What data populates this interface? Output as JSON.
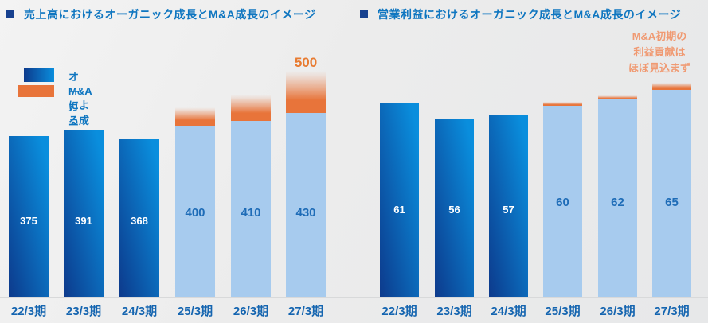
{
  "colors": {
    "title_blue": "#0f76c0",
    "bullet_navy": "#17418f",
    "axis_blue": "#1565b0",
    "value_blue": "#1e6cb7",
    "dark_bar_start": "#0d3a8c",
    "dark_bar_end": "#0a8edd",
    "light_bar": "#a7cbee",
    "orange": "#e8743a",
    "orange_label": "#e87b31",
    "annotation_orange": "#f09a72",
    "baseline_color": "#d8d9da",
    "background": "#ececec"
  },
  "titles": {
    "bullet": "",
    "left": "売上高におけるオーガニック成長とM&A成長のイメージ",
    "right": "営業利益におけるオーガニック成長とM&A成長のイメージ"
  },
  "legend": {
    "organic_label": "オーガニックによる成長",
    "mna_label": "M&Aによる成長"
  },
  "annotation": {
    "lines": [
      "M&A初期の",
      "利益貢献は",
      "ほぼ見込まず"
    ]
  },
  "peak_label": "500",
  "chart_data": [
    {
      "type": "bar",
      "title": "売上高におけるオーガニック成長とM&A成長のイメージ",
      "categories": [
        "22/3期",
        "23/3期",
        "24/3期",
        "25/3期",
        "26/3期",
        "27/3期"
      ],
      "series": [
        {
          "name": "オーガニックによる成長",
          "values": [
            375,
            391,
            368,
            400,
            410,
            430
          ]
        },
        {
          "name": "M&Aによる成長",
          "values": [
            0,
            0,
            0,
            null,
            null,
            70
          ],
          "note": "M&A portions for 25/3期 and 26/3期 are drawn but not labeled; 27/3期 total is labeled 500 (500-430=70)"
        }
      ],
      "total_label_last_bar": 500,
      "xlabel": "",
      "ylabel": "",
      "grid": false,
      "legend_position": "upper-left",
      "style_note": "first 3 bars dark blue gradient (actual), last 3 light blue (forecast) with orange fading M&A caps"
    },
    {
      "type": "bar",
      "title": "営業利益におけるオーガニック成長とM&A成長のイメージ",
      "categories": [
        "22/3期",
        "23/3期",
        "24/3期",
        "25/3期",
        "26/3期",
        "27/3期"
      ],
      "series": [
        {
          "name": "オーガニックによる成長",
          "values": [
            61,
            56,
            57,
            60,
            62,
            65
          ]
        },
        {
          "name": "M&Aによる成長",
          "values": [
            0,
            0,
            0,
            null,
            null,
            null
          ],
          "note": "only thin unlabeled orange slivers; annotation says M&A initial profit contribution mostly not expected"
        }
      ],
      "annotation": "M&A初期の利益貢献はほぼ見込まず",
      "xlabel": "",
      "ylabel": "",
      "grid": false,
      "legend_position": "none (shared with left chart)",
      "style_note": "first 3 bars dark blue gradient (actual), last 3 light blue (forecast) with very thin orange caps"
    }
  ]
}
